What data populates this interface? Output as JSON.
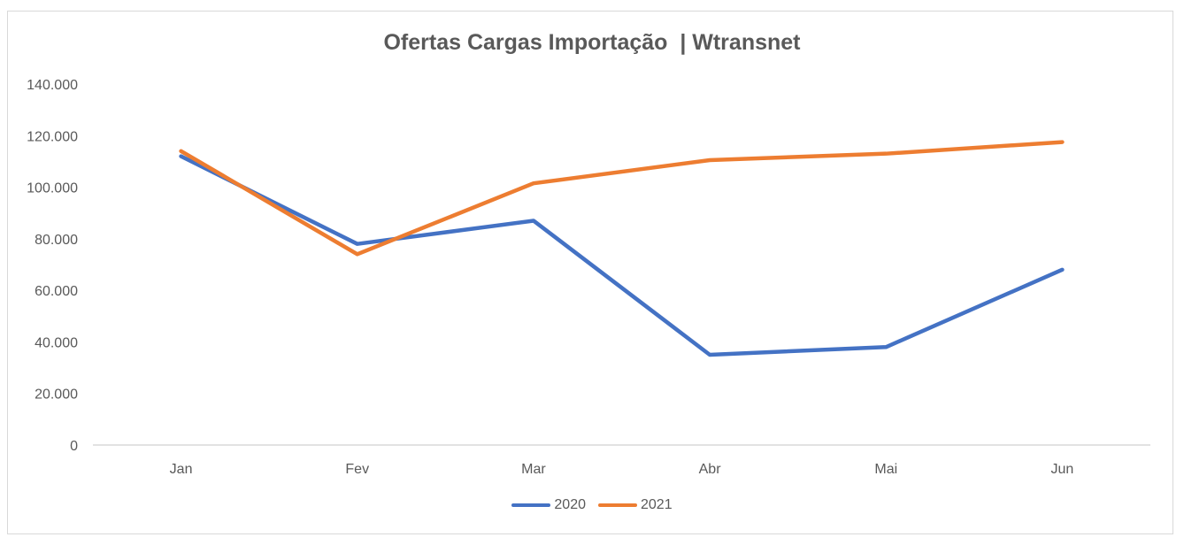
{
  "chart_data": {
    "type": "line",
    "title": "Ofertas Cargas Importação  | Wtransnet",
    "xlabel": "",
    "ylabel": "",
    "categories": [
      "Jan",
      "Fev",
      "Mar",
      "Abr",
      "Mai",
      "Jun"
    ],
    "series": [
      {
        "name": "2020",
        "color": "#4472c4",
        "values": [
          112000,
          78000,
          87000,
          35000,
          38000,
          68000
        ]
      },
      {
        "name": "2021",
        "color": "#ed7d31",
        "values": [
          114000,
          74000,
          101500,
          110500,
          113000,
          117500
        ]
      }
    ],
    "ylim": [
      0,
      140000
    ],
    "yticks": [
      0,
      20000,
      40000,
      60000,
      80000,
      100000,
      120000,
      140000
    ],
    "ytick_labels": [
      "0",
      "20.000",
      "40.000",
      "60.000",
      "80.000",
      "100.000",
      "120.000",
      "140.000"
    ],
    "grid": false,
    "legend_position": "bottom"
  }
}
